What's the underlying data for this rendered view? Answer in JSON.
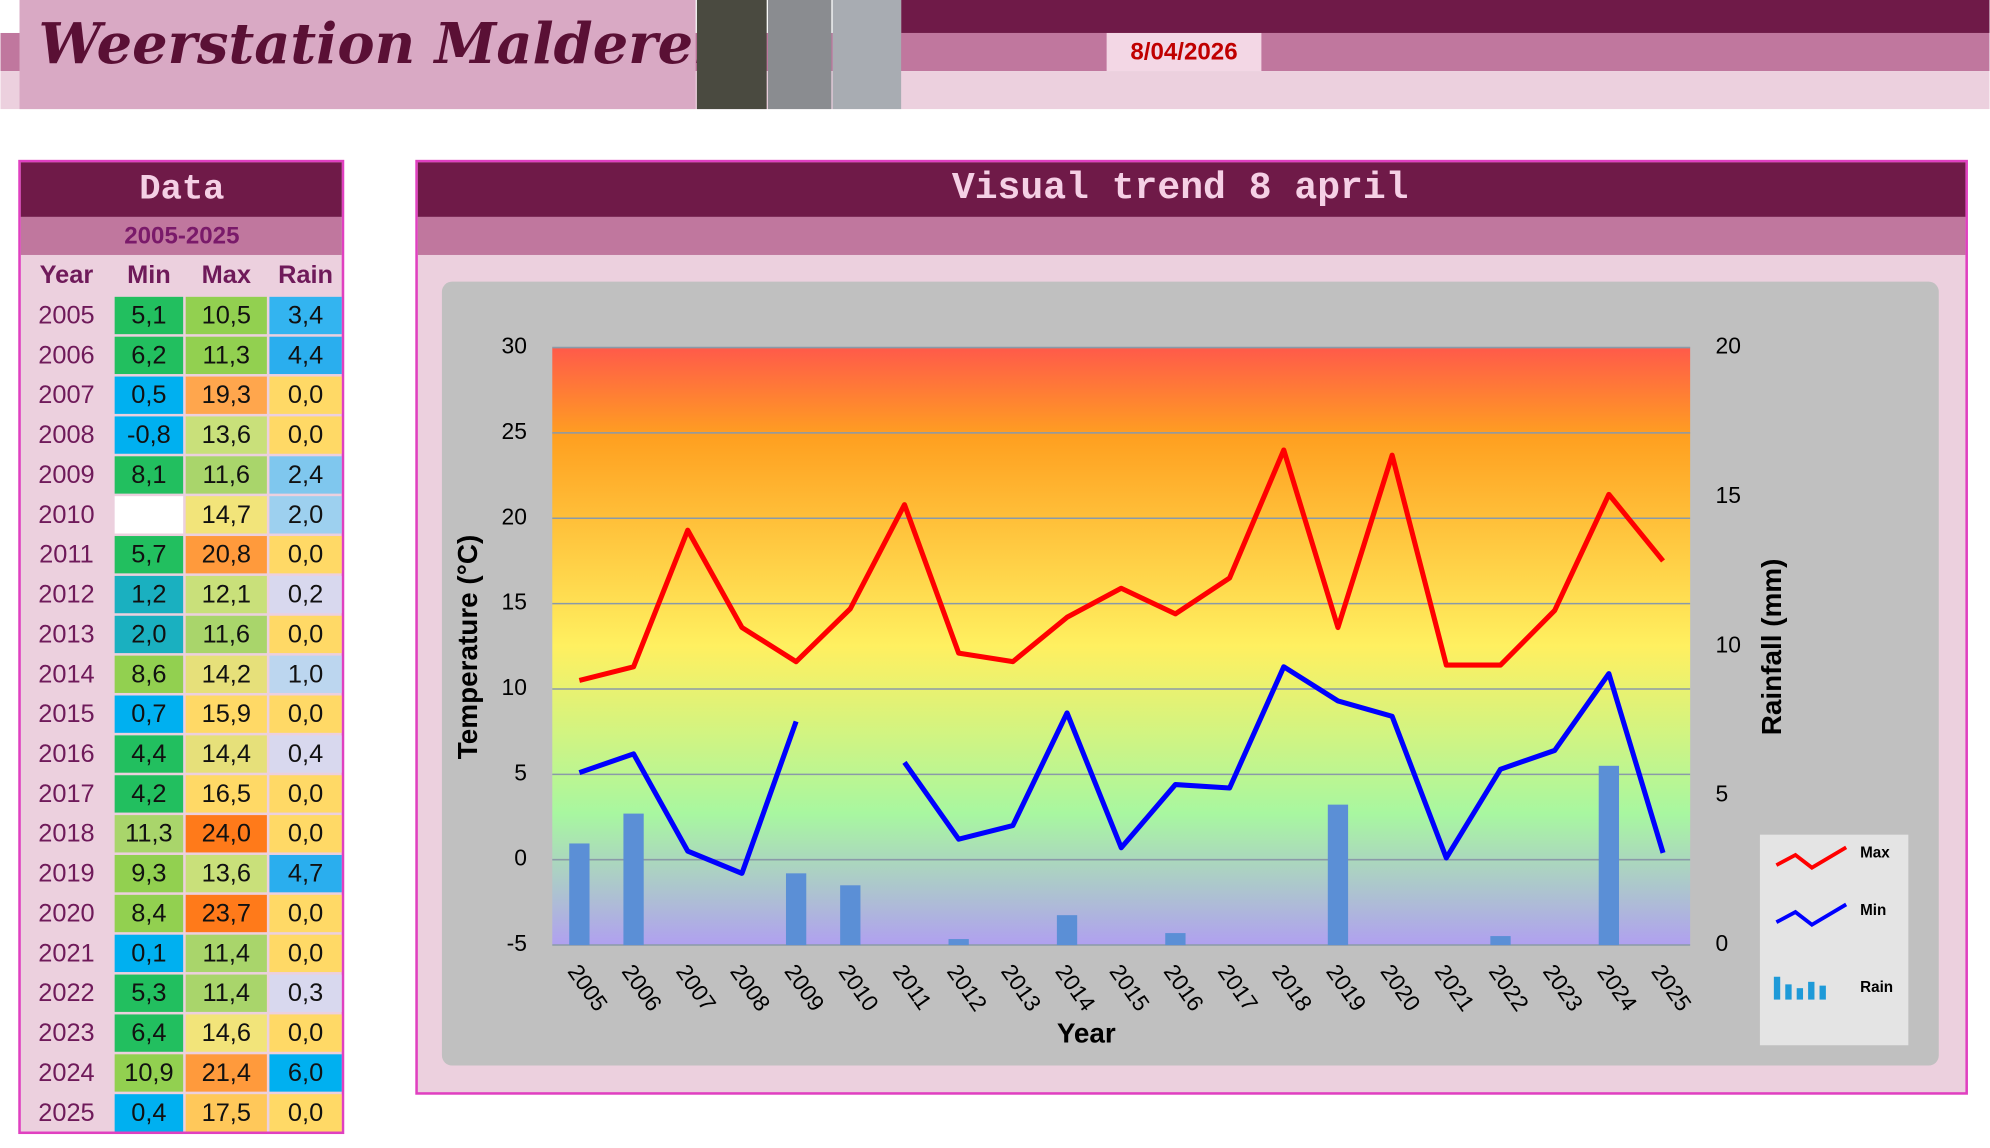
{
  "header": {
    "title": "Weerstation Malderen",
    "date": "8/04/2026"
  },
  "table": {
    "title": "Data",
    "subtitle": "2005-2025",
    "columns": [
      "Year",
      "Min",
      "Max",
      "Rain"
    ],
    "rows": [
      [
        "2005",
        "5,1",
        "10,5",
        "3,4"
      ],
      [
        "2006",
        "6,2",
        "11,3",
        "4,4"
      ],
      [
        "2007",
        "0,5",
        "19,3",
        "0,0"
      ],
      [
        "2008",
        "-0,8",
        "13,6",
        "0,0"
      ],
      [
        "2009",
        "8,1",
        "11,6",
        "2,4"
      ],
      [
        "2010",
        null,
        "14,7",
        "2,0"
      ],
      [
        "2011",
        "5,7",
        "20,8",
        "0,0"
      ],
      [
        "2012",
        "1,2",
        "12,1",
        "0,2"
      ],
      [
        "2013",
        "2,0",
        "11,6",
        "0,0"
      ],
      [
        "2014",
        "8,6",
        "14,2",
        "1,0"
      ],
      [
        "2015",
        "0,7",
        "15,9",
        "0,0"
      ],
      [
        "2016",
        "4,4",
        "14,4",
        "0,4"
      ],
      [
        "2017",
        "4,2",
        "16,5",
        "0,0"
      ],
      [
        "2018",
        "11,3",
        "24,0",
        "0,0"
      ],
      [
        "2019",
        "9,3",
        "13,6",
        "4,7"
      ],
      [
        "2020",
        "8,4",
        "23,7",
        "0,0"
      ],
      [
        "2021",
        "0,1",
        "11,4",
        "0,0"
      ],
      [
        "2022",
        "5,3",
        "11,4",
        "0,3"
      ],
      [
        "2023",
        "6,4",
        "14,6",
        "0,0"
      ],
      [
        "2024",
        "10,9",
        "21,4",
        "6,0"
      ],
      [
        "2025",
        "0,4",
        "17,5",
        "0,0"
      ]
    ],
    "colors": [
      [
        "#22bf5f",
        "#92d050",
        "#33b4f0"
      ],
      [
        "#22bf5f",
        "#92d050",
        "#2aaeee"
      ],
      [
        "#00b0f0",
        "#ffa64d",
        "#ffd966"
      ],
      [
        "#00b0f0",
        "#c9e07a",
        "#ffd966"
      ],
      [
        "#22bf5f",
        "#a9d56b",
        "#7fc7ee"
      ],
      [
        "#ffffff",
        "#f2e47a",
        "#9dd0ef"
      ],
      [
        "#22bf5f",
        "#ff9a3c",
        "#ffd966"
      ],
      [
        "#1ab0c0",
        "#c9e07a",
        "#d8d8ee"
      ],
      [
        "#1ab0c0",
        "#a9d56b",
        "#ffd966"
      ],
      [
        "#92d050",
        "#e6e07a",
        "#bcd6ef"
      ],
      [
        "#00b0f0",
        "#ffd966",
        "#ffd966"
      ],
      [
        "#22bf5f",
        "#e6e07a",
        "#d8d8ee"
      ],
      [
        "#22bf5f",
        "#ffd966",
        "#ffd966"
      ],
      [
        "#a9d56b",
        "#ff7a1a",
        "#ffd966"
      ],
      [
        "#92d050",
        "#c9e07a",
        "#2aaeee"
      ],
      [
        "#92d050",
        "#ff7a1a",
        "#ffd966"
      ],
      [
        "#00b0f0",
        "#a9d56b",
        "#ffd966"
      ],
      [
        "#22bf5f",
        "#a9d56b",
        "#d8d8ee"
      ],
      [
        "#22bf5f",
        "#f2e47a",
        "#ffd966"
      ],
      [
        "#92d050",
        "#ff9a3c",
        "#00b0f0"
      ],
      [
        "#00b0f0",
        "#ffc85a",
        "#ffd966"
      ]
    ]
  },
  "chart_data": {
    "type": "line",
    "title": "Visual trend 8 april",
    "x_label": "Year",
    "y_label": "Temperature (°C)",
    "y2_label": "Rainfall (mm)",
    "categories": [
      "2005",
      "2006",
      "2007",
      "2008",
      "2009",
      "2010",
      "2011",
      "2012",
      "2013",
      "2014",
      "2015",
      "2016",
      "2017",
      "2018",
      "2019",
      "2020",
      "2021",
      "2022",
      "2023",
      "2024",
      "2025"
    ],
    "series": [
      {
        "name": "Max",
        "color": "#ff0000",
        "type": "line",
        "values": [
          10.5,
          11.3,
          19.3,
          13.6,
          11.6,
          14.7,
          20.8,
          12.1,
          11.6,
          14.2,
          15.9,
          14.4,
          16.5,
          24.0,
          13.6,
          23.7,
          11.4,
          11.4,
          14.6,
          21.4,
          17.5
        ]
      },
      {
        "name": "Min",
        "color": "#0000ff",
        "type": "line",
        "values": [
          5.1,
          6.2,
          0.5,
          -0.8,
          8.1,
          null,
          5.7,
          1.2,
          2.0,
          8.6,
          0.7,
          4.4,
          4.2,
          11.3,
          9.3,
          8.4,
          0.1,
          5.3,
          6.4,
          10.9,
          0.4
        ]
      },
      {
        "name": "Rain",
        "color": "#5b8fd6",
        "type": "bar",
        "axis": "y2",
        "values": [
          3.4,
          4.4,
          0.0,
          0.0,
          2.4,
          2.0,
          0.0,
          0.2,
          0.0,
          1.0,
          0.0,
          0.4,
          0.0,
          0.0,
          4.7,
          0.0,
          0.0,
          0.3,
          0.0,
          6.0,
          0.0
        ]
      }
    ],
    "ylim": [
      -5,
      30
    ],
    "yticks": [
      -5,
      0,
      5,
      10,
      15,
      20,
      25,
      30
    ],
    "y2lim": [
      0,
      20
    ],
    "y2ticks": [
      0,
      5,
      10,
      15,
      20
    ],
    "grid": true
  }
}
